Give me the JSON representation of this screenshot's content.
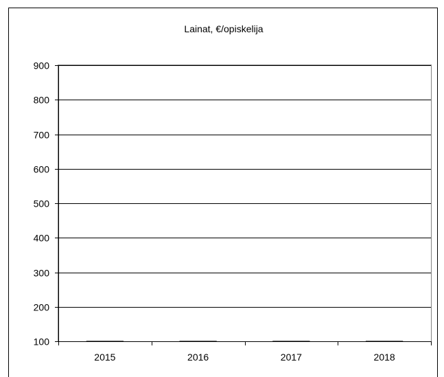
{
  "chart_data": {
    "type": "bar",
    "title": "Lainat, €/opiskelija",
    "xlabel": "",
    "ylabel": "",
    "categories": [
      "2015",
      "2016",
      "2017",
      "2018"
    ],
    "series": [
      {
        "values": [
          100,
          100,
          100,
          100
        ]
      }
    ],
    "ylim": [
      100,
      900
    ],
    "yticks": [
      "100",
      "200",
      "300",
      "400",
      "500",
      "600",
      "700",
      "800",
      "900"
    ],
    "grid": true,
    "legend": "none",
    "colors": {
      "grid": "#000000",
      "frame": "#000000",
      "plot_border": "#808080",
      "background": "#ffffff"
    }
  }
}
